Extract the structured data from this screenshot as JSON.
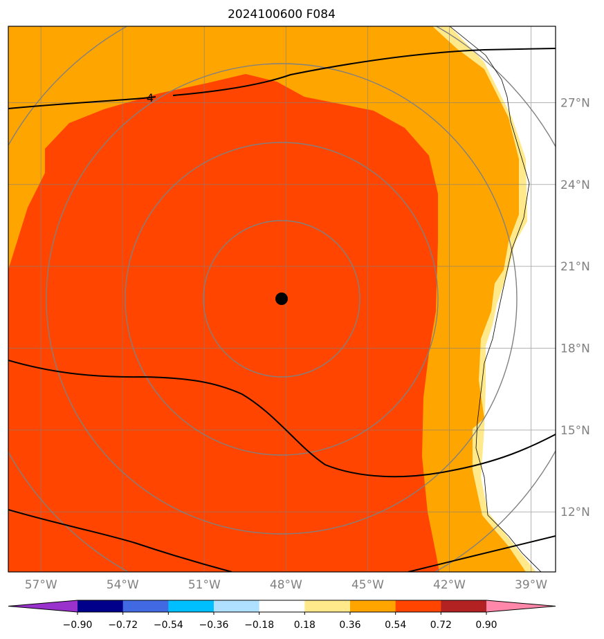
{
  "title": "2024100600 F084",
  "map": {
    "lon_range": [
      -58.2,
      -38.1
    ],
    "lat_range": [
      9.8,
      29.8
    ],
    "center": {
      "lon": -48.0,
      "lat": 19.7
    },
    "x_ticks": [
      {
        "lon": -57,
        "label": "57°W"
      },
      {
        "lon": -54,
        "label": "54°W"
      },
      {
        "lon": -51,
        "label": "51°W"
      },
      {
        "lon": -48,
        "label": "48°W"
      },
      {
        "lon": -45,
        "label": "45°W"
      },
      {
        "lon": -42,
        "label": "42°W"
      },
      {
        "lon": -39,
        "label": "39°W"
      }
    ],
    "y_ticks": [
      {
        "lat": 27,
        "label": "27°N"
      },
      {
        "lat": 24,
        "label": "24°N"
      },
      {
        "lat": 21,
        "label": "21°N"
      },
      {
        "lat": 18,
        "label": "18°N"
      },
      {
        "lat": 15,
        "label": "15°N"
      },
      {
        "lat": 12,
        "label": "12°N"
      }
    ],
    "contour_label": "4",
    "colors": {
      "grid": "#808080",
      "contour": "#000000",
      "center_marker": "#000000"
    }
  },
  "colorbar": {
    "ticks": [
      "−0.90",
      "−0.72",
      "−0.54",
      "−0.36",
      "−0.18",
      "0.18",
      "0.36",
      "0.54",
      "0.72",
      "0.90"
    ],
    "colors": [
      "#9932cc",
      "#00008b",
      "#4169e1",
      "#00bfff",
      "#b0e0ff",
      "#ffffff",
      "#ffe98a",
      "#ffa500",
      "#ff4500",
      "#b22222",
      "#ff88aa"
    ]
  }
}
